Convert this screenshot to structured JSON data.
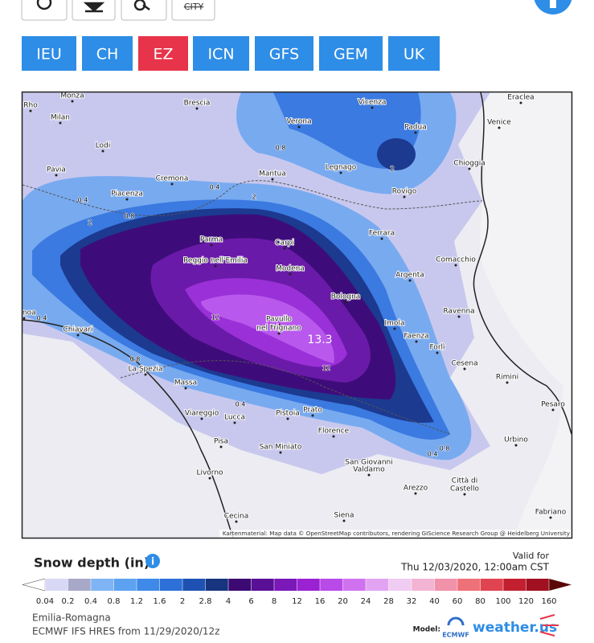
{
  "toolbar": {
    "city_button": "CITY",
    "models": [
      {
        "label": "IEU",
        "active": false
      },
      {
        "label": "CH",
        "active": false
      },
      {
        "label": "EZ",
        "active": true
      },
      {
        "label": "ICN",
        "active": false
      },
      {
        "label": "GFS",
        "active": false
      },
      {
        "label": "GEM",
        "active": false
      },
      {
        "label": "UK",
        "active": false
      }
    ]
  },
  "map": {
    "cities": [
      "Monza",
      "Rho",
      "Milan",
      "Brescia",
      "Vicenza",
      "Eraclea",
      "Verona",
      "Padua",
      "Venice",
      "Lodi",
      "Mantua",
      "Legnago",
      "Chioggia",
      "Pavia",
      "Cremona",
      "Piacenza",
      "Rovigo",
      "Parma",
      "Carpi",
      "Ferrara",
      "Reggio nell'Emilia",
      "Modena",
      "Comacchio",
      "Argenta",
      "Bologna",
      "Ravenna",
      "Pavullo",
      "nel Frignano",
      "Imola",
      "Faenza",
      "Forlì",
      "Cesena",
      "Chiavari",
      "Genoa",
      "La Spezia",
      "Massa",
      "Rimini",
      "Pesaro",
      "Viareggio",
      "Lucca",
      "Pistoia",
      "Prato",
      "Florence",
      "Urbino",
      "Pisa",
      "San Miniato",
      "San Giovanni",
      "Valdarno",
      "Arezzo",
      "Città di",
      "Castello",
      "Livorno",
      "Siena",
      "Cecina",
      "Fabriano"
    ],
    "contour_labels": [
      0.8,
      0.4,
      2,
      0.4,
      0.8,
      2,
      2,
      12,
      12,
      0.4,
      0.8,
      0.4,
      0.8,
      0.4
    ],
    "max_label": 13.3,
    "attribution": "Kartenmaterial: Map data © OpenStreetMap contributors, rendering GIScience Research Group @ Heidelberg University"
  },
  "legend": {
    "title": "Snow depth (in)",
    "valid_label": "Valid for",
    "valid_time": "Thu 12/03/2020, 12:00am CST",
    "ticks": [
      0.04,
      0.2,
      0.4,
      0.8,
      1.2,
      1.6,
      2,
      2.8,
      4,
      6,
      8,
      12,
      16,
      20,
      24,
      28,
      32,
      40,
      60,
      80,
      100,
      120,
      160
    ],
    "colors": [
      "#ffffff",
      "#d8d8f6",
      "#a8a8c8",
      "#7eb4f4",
      "#5ca2f0",
      "#3f8ae8",
      "#2d70d8",
      "#1e52b2",
      "#17357e",
      "#3c0a72",
      "#5a1096",
      "#7a18b8",
      "#9a22d2",
      "#b84ae8",
      "#d072f0",
      "#e2a4f2",
      "#f0ccf2",
      "#f2b4d2",
      "#f092aa",
      "#ee7078",
      "#e04450",
      "#c22030",
      "#a01020",
      "#801010",
      "#5a0808"
    ]
  },
  "footer": {
    "region": "Emilia-Romagna",
    "run": "ECMWF IFS HRES from 11/29/2020/12z",
    "model_label": "Model:",
    "model_logo": "ECMWF",
    "brand": "weather.us"
  }
}
